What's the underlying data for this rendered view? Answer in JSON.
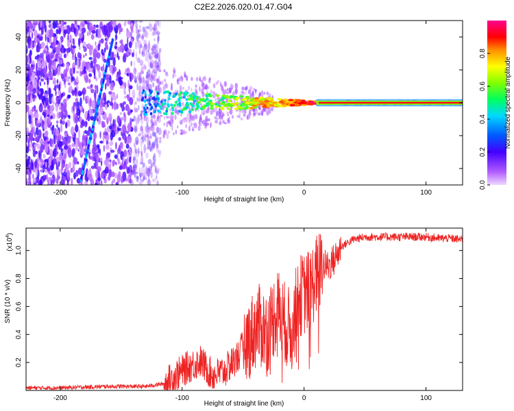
{
  "title": "C2E2.2026.020.01.47.G04",
  "colors": {
    "snr_line": "#ee2222",
    "background": "#ffffff",
    "axes": "#000000"
  },
  "chart_data": [
    {
      "type": "heatmap",
      "panel": "spectrogram",
      "xlabel": "Height of straight line (km)",
      "ylabel": "Frequency (Hz)",
      "xlim": [
        -228,
        130
      ],
      "ylim": [
        -50,
        50
      ],
      "xticks": [
        -200,
        -100,
        0,
        100
      ],
      "yticks": [
        -40,
        -20,
        0,
        20,
        40
      ],
      "colorbar": {
        "label": "Normalized spectral amplitude",
        "range": [
          0.0,
          1.0
        ],
        "ticks": [
          0.0,
          0.2,
          0.4,
          0.6,
          0.8
        ],
        "colormap": "purple-blue-cyan-green-yellow-red"
      },
      "features": [
        {
          "name": "satellite doppler streak",
          "x": [
            -183,
            -157
          ],
          "y": [
            -47,
            38
          ],
          "amplitude": 0.35
        },
        {
          "name": "signal band",
          "x": [
            -130,
            130
          ],
          "y_center": 0,
          "amplitude": 0.9
        }
      ]
    },
    {
      "type": "line",
      "panel": "snr",
      "xlabel": "Height of straight line (km)",
      "ylabel": "SNR (10 * v/v)",
      "y_multiplier": "(x10",
      "y_multiplier_exponent": "4",
      "y_multiplier_close": ")",
      "xlim": [
        -228,
        130
      ],
      "ylim": [
        0,
        1.16
      ],
      "xticks": [
        -200,
        -100,
        0,
        100
      ],
      "yticks": [
        0.2,
        0.4,
        0.6,
        0.8,
        1.0
      ],
      "x": [
        -228,
        -200,
        -160,
        -130,
        -115,
        -105,
        -95,
        -85,
        -75,
        -65,
        -55,
        -45,
        -38,
        -30,
        -22,
        -15,
        -10,
        -5,
        0,
        5,
        10,
        15,
        20,
        25,
        30,
        40,
        50,
        60,
        70,
        80,
        90,
        100,
        110,
        120,
        130
      ],
      "y": [
        0.02,
        0.02,
        0.03,
        0.03,
        0.05,
        0.12,
        0.18,
        0.22,
        0.12,
        0.15,
        0.25,
        0.4,
        0.5,
        0.45,
        0.62,
        0.5,
        0.45,
        0.7,
        0.72,
        0.75,
        0.85,
        0.9,
        0.9,
        0.95,
        1.03,
        1.08,
        1.1,
        1.1,
        1.1,
        1.1,
        1.1,
        1.1,
        1.09,
        1.09,
        1.08
      ]
    }
  ]
}
